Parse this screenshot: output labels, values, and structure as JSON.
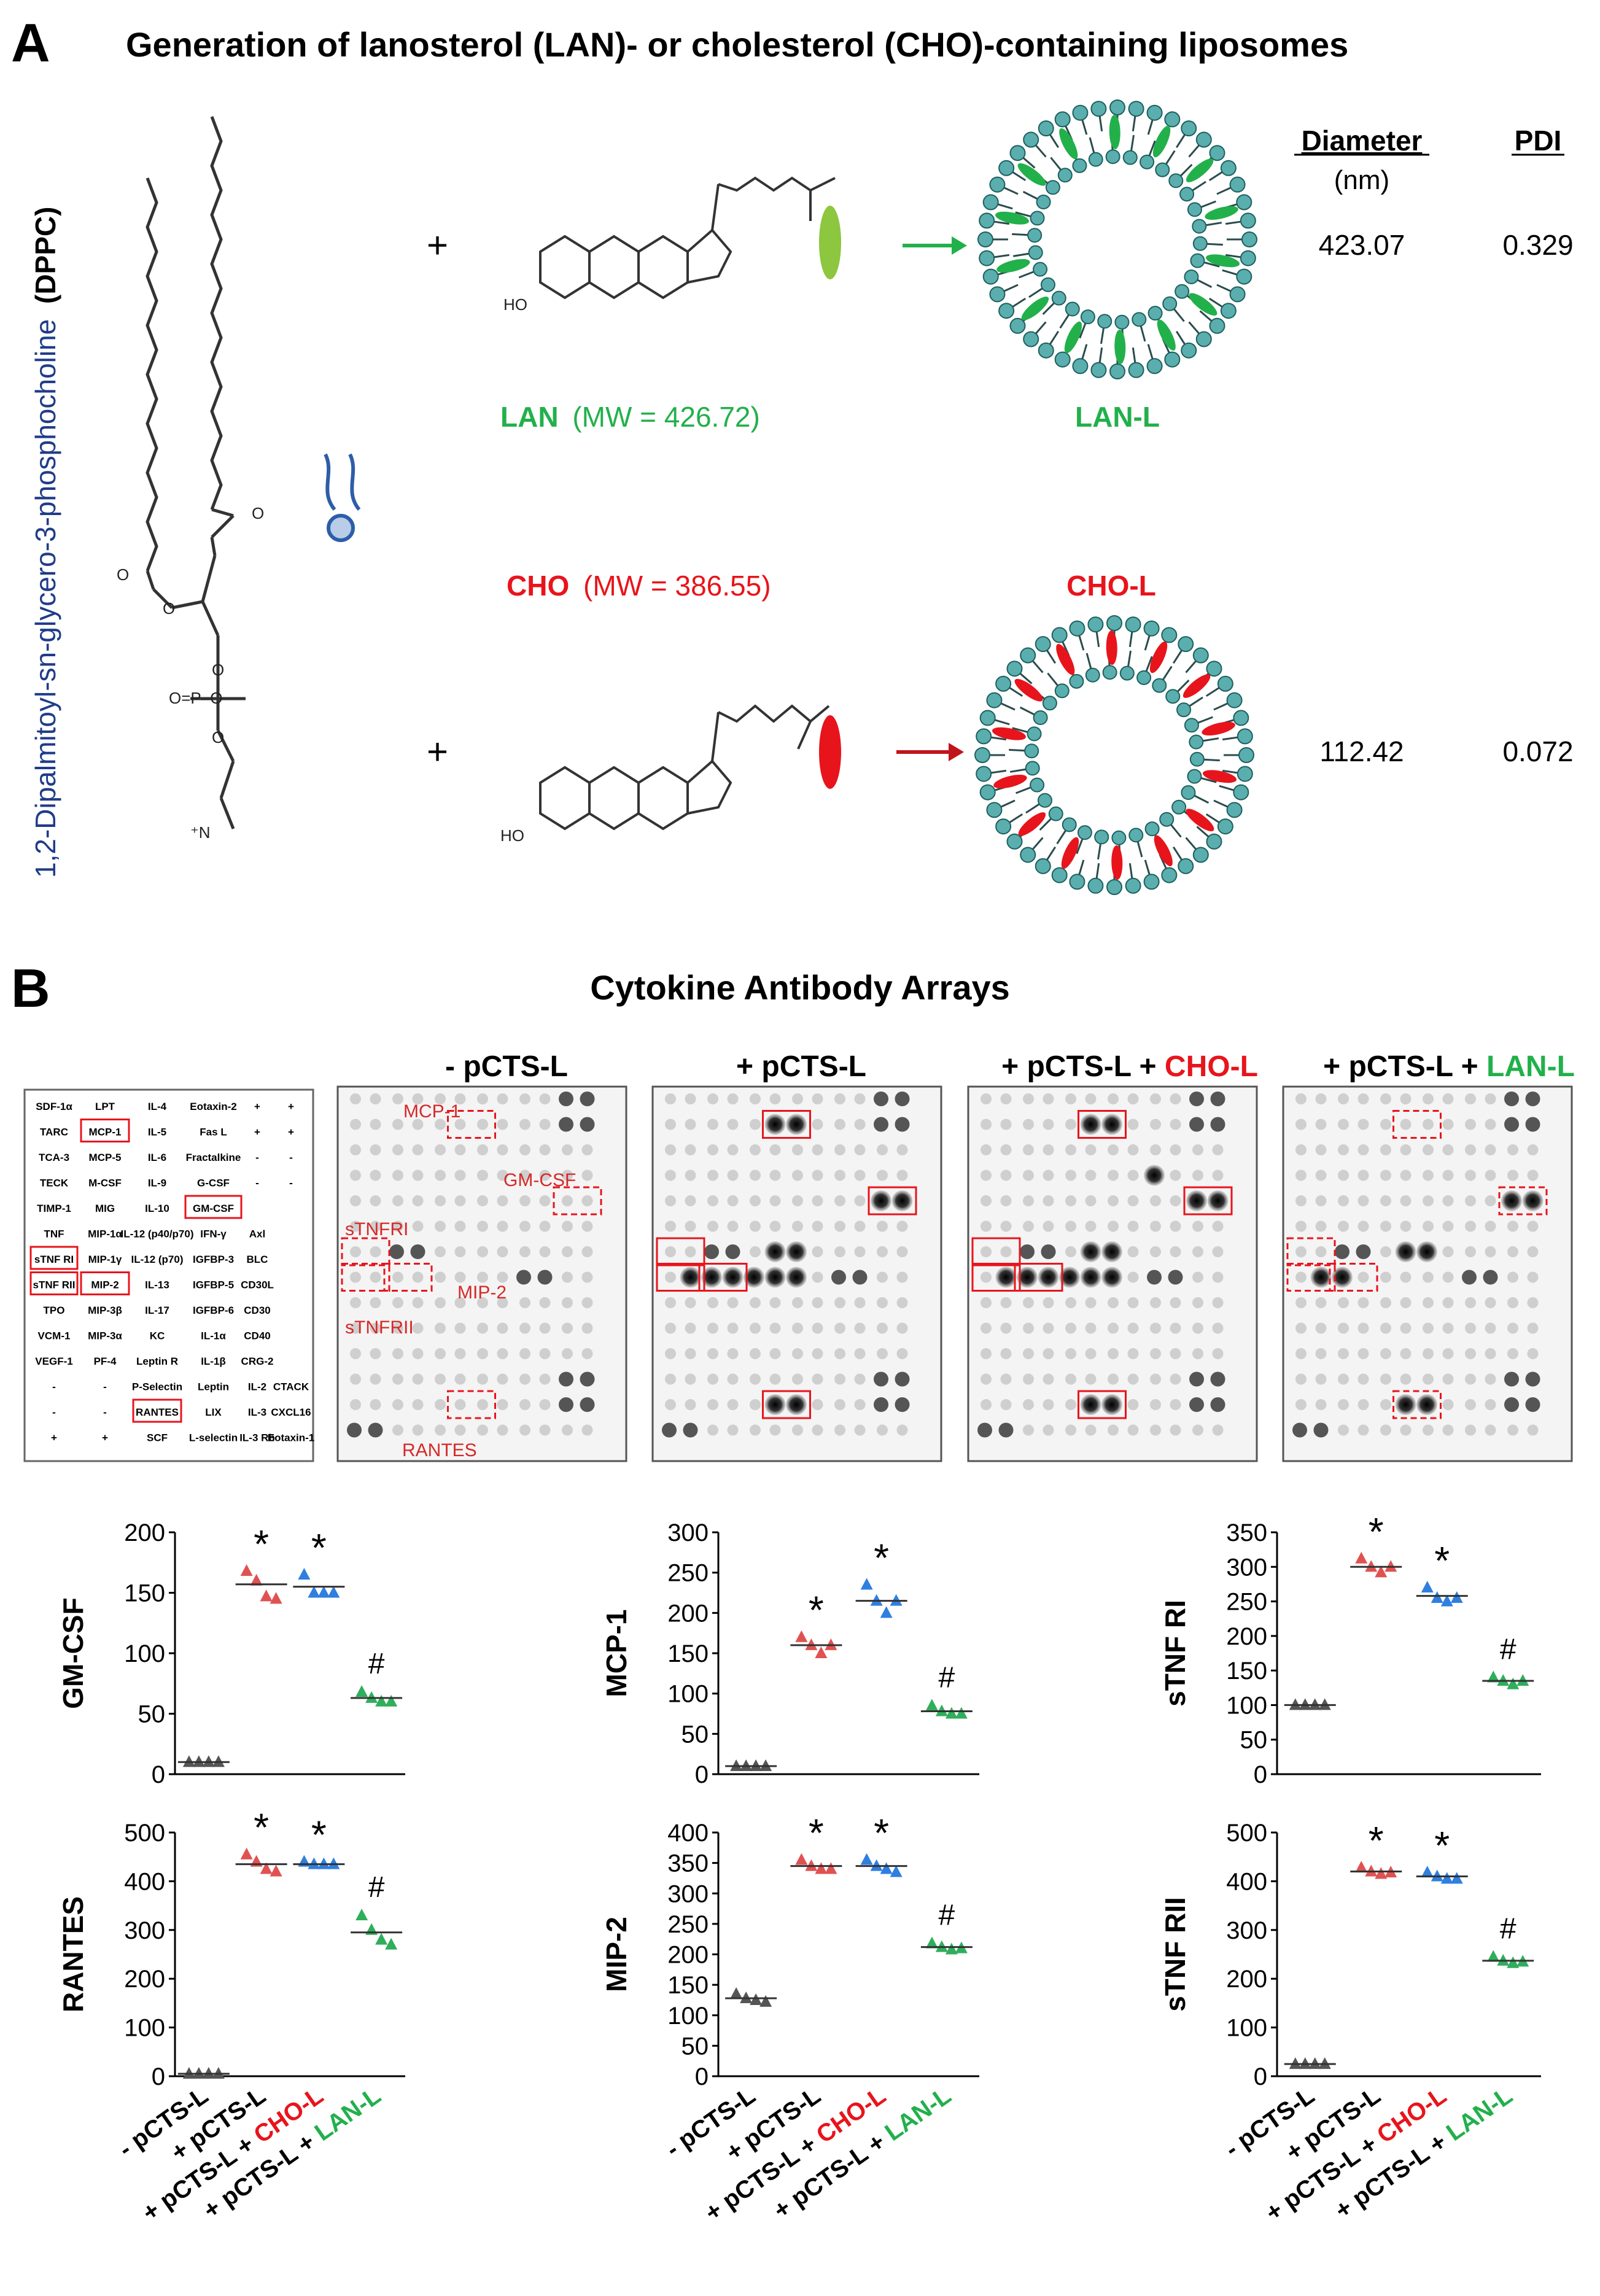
{
  "panel_a": {
    "letter": "A",
    "title": "Generation of lanosterol (LAN)- or cholesterol (CHO)-containing liposomes",
    "dppc_name": "1,2-Dipalmitoyl-sn-glycero-3-phosphocholine",
    "dppc_abbr": "(DPPC)",
    "plus": "+",
    "lan_label": "LAN",
    "lan_mw": "(MW = 426.72)",
    "cho_label": "CHO",
    "cho_mw": "(MW = 386.55)",
    "lan_lipo": "LAN-L",
    "cho_lipo": "CHO-L",
    "col_diameter": "Diameter",
    "col_nm": "(nm)",
    "col_pdi": "PDI",
    "lan_diameter": "423.07",
    "lan_pdi": "0.329",
    "cho_diameter": "112.42",
    "cho_pdi": "0.072",
    "colors": {
      "lan": "#22b04b",
      "cho": "#e8141c",
      "dppc_text": "#1f3c88",
      "membrane": "#2c8c8c"
    }
  },
  "panel_b": {
    "letter": "B",
    "title": "Cytokine Antibody Arrays",
    "array_titles": [
      "- pCTS-L",
      "+ pCTS-L",
      "+ pCTS-L + ",
      "CHO-L",
      "+ pCTS-L + ",
      "LAN-L"
    ],
    "map_rows": [
      [
        "SDF-1α",
        "LPT",
        "IL-4",
        "Eotaxin-2",
        "+",
        "+"
      ],
      [
        "TARC",
        "MCP-1",
        "IL-5",
        "Fas L",
        "+",
        "+"
      ],
      [
        "TCA-3",
        "MCP-5",
        "IL-6",
        "Fractalkine",
        "-",
        "-"
      ],
      [
        "TECK",
        "M-CSF",
        "IL-9",
        "G-CSF",
        "-",
        "-"
      ],
      [
        "TIMP-1",
        "MIG",
        "IL-10",
        "GM-CSF",
        "",
        ""
      ],
      [
        "TNF",
        "MIP-1α",
        "IL-12 (p40/p70)",
        "IFN-γ",
        "Axl",
        ""
      ],
      [
        "sTNF RI",
        "MIP-1γ",
        "IL-12 (p70)",
        "IGFBP-3",
        "BLC",
        ""
      ],
      [
        "sTNF RII",
        "MIP-2",
        "IL-13",
        "IGFBP-5",
        "CD30L",
        ""
      ],
      [
        "TPO",
        "MIP-3β",
        "IL-17",
        "IGFBP-6",
        "CD30",
        ""
      ],
      [
        "VCM-1",
        "MIP-3α",
        "KC",
        "IL-1α",
        "CD40",
        ""
      ],
      [
        "VEGF-1",
        "PF-4",
        "Leptin R",
        "IL-1β",
        "CRG-2",
        ""
      ],
      [
        "-",
        "-",
        "P-Selectin",
        "Leptin",
        "IL-2",
        "CTACK"
      ],
      [
        "-",
        "-",
        "RANTES",
        "LIX",
        "IL-3",
        "CXCL16"
      ],
      [
        "+",
        "+",
        "SCF",
        "L-selectin",
        "IL-3 Rb",
        "Eotaxin-1"
      ]
    ],
    "array_labels": {
      "mcp1": "MCP-1",
      "gmcsf": "GM-CSF",
      "stnfri": "sTNFRI",
      "mip2": "MIP-2",
      "stnfrii": "sTNFRII",
      "rantes": "RANTES"
    },
    "x_labels": [
      "- pCTS-L",
      "+ pCTS-L",
      "+ pCTS-L + ",
      "CHO-L",
      "+ pCTS-L + ",
      "LAN-L"
    ]
  },
  "chart_data": [
    {
      "type": "scatter",
      "ylabel": "GM-CSF",
      "ylim": [
        0,
        200
      ],
      "ticks": [
        0,
        50,
        100,
        150,
        200
      ],
      "categories": [
        "- pCTS-L",
        "+ pCTS-L",
        "+ pCTS-L + CHO-L",
        "+ pCTS-L + LAN-L"
      ],
      "means": [
        10,
        157,
        155,
        63
      ],
      "points": [
        [
          10,
          10,
          10,
          10
        ],
        [
          168,
          160,
          147,
          145
        ],
        [
          165,
          150,
          150,
          150
        ],
        [
          68,
          63,
          60,
          60
        ]
      ],
      "annotations": [
        "",
        "*",
        "*",
        "#"
      ]
    },
    {
      "type": "scatter",
      "ylabel": "MCP-1",
      "ylim": [
        0,
        300
      ],
      "ticks": [
        0,
        50,
        100,
        150,
        200,
        250,
        300
      ],
      "categories": [
        "- pCTS-L",
        "+ pCTS-L",
        "+ pCTS-L + CHO-L",
        "+ pCTS-L + LAN-L"
      ],
      "means": [
        10,
        160,
        215,
        78
      ],
      "points": [
        [
          10,
          10,
          10,
          10
        ],
        [
          170,
          160,
          150,
          160
        ],
        [
          235,
          215,
          200,
          215
        ],
        [
          85,
          78,
          75,
          75
        ]
      ],
      "annotations": [
        "",
        "*",
        "*",
        "#"
      ]
    },
    {
      "type": "scatter",
      "ylabel": "sTNF RI",
      "ylim": [
        0,
        350
      ],
      "ticks": [
        0,
        50,
        100,
        150,
        200,
        250,
        300,
        350
      ],
      "categories": [
        "- pCTS-L",
        "+ pCTS-L",
        "+ pCTS-L + CHO-L",
        "+ pCTS-L + LAN-L"
      ],
      "means": [
        100,
        300,
        258,
        135
      ],
      "points": [
        [
          100,
          100,
          100,
          100
        ],
        [
          312,
          300,
          292,
          300
        ],
        [
          270,
          255,
          250,
          255
        ],
        [
          140,
          135,
          130,
          135
        ]
      ],
      "annotations": [
        "",
        "*",
        "*",
        "#"
      ]
    },
    {
      "type": "scatter",
      "ylabel": "RANTES",
      "ylim": [
        0,
        500
      ],
      "ticks": [
        0,
        100,
        200,
        300,
        400,
        500
      ],
      "categories": [
        "- pCTS-L",
        "+ pCTS-L",
        "+ pCTS-L + CHO-L",
        "+ pCTS-L + LAN-L"
      ],
      "means": [
        5,
        435,
        435,
        295
      ],
      "points": [
        [
          5,
          5,
          5,
          5
        ],
        [
          455,
          440,
          425,
          420
        ],
        [
          440,
          435,
          435,
          435
        ],
        [
          330,
          300,
          280,
          270
        ]
      ],
      "annotations": [
        "",
        "*",
        "*",
        "#"
      ]
    },
    {
      "type": "scatter",
      "ylabel": "MIP-2",
      "ylim": [
        0,
        400
      ],
      "ticks": [
        0,
        50,
        100,
        150,
        200,
        250,
        300,
        350,
        400
      ],
      "categories": [
        "- pCTS-L",
        "+ pCTS-L",
        "+ pCTS-L + CHO-L",
        "+ pCTS-L + LAN-L"
      ],
      "means": [
        128,
        345,
        345,
        212
      ],
      "points": [
        [
          135,
          128,
          125,
          122
        ],
        [
          355,
          345,
          340,
          340
        ],
        [
          355,
          345,
          340,
          335
        ],
        [
          218,
          212,
          208,
          210
        ]
      ],
      "annotations": [
        "",
        "*",
        "*",
        "#"
      ]
    },
    {
      "type": "scatter",
      "ylabel": "sTNF RII",
      "ylim": [
        0,
        500
      ],
      "ticks": [
        0,
        100,
        200,
        300,
        400,
        500
      ],
      "categories": [
        "- pCTS-L",
        "+ pCTS-L",
        "+ pCTS-L + CHO-L",
        "+ pCTS-L + LAN-L"
      ],
      "means": [
        25,
        420,
        410,
        237
      ],
      "points": [
        [
          25,
          25,
          25,
          25
        ],
        [
          428,
          420,
          415,
          418
        ],
        [
          418,
          410,
          405,
          405
        ],
        [
          245,
          237,
          232,
          235
        ]
      ],
      "annotations": [
        "",
        "*",
        "*",
        "#"
      ]
    }
  ]
}
